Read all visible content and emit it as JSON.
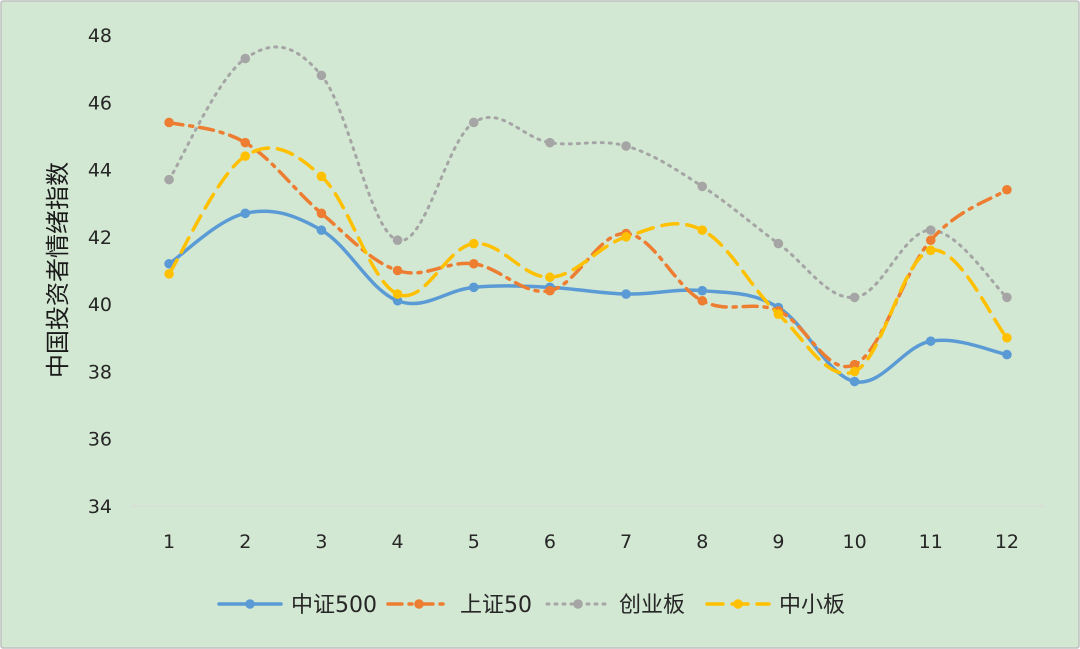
{
  "chart_data": {
    "type": "line",
    "title": "",
    "xlabel": "",
    "ylabel": "中国投资者情绪指数",
    "categories": [
      "1",
      "2",
      "3",
      "4",
      "5",
      "6",
      "7",
      "8",
      "9",
      "10",
      "11",
      "12"
    ],
    "ylim": [
      34,
      48
    ],
    "yticks": [
      "34",
      "36",
      "38",
      "40",
      "42",
      "44",
      "46",
      "48"
    ],
    "grid": false,
    "smooth": true,
    "legend_position": "bottom",
    "background_color": "#d3e8d3",
    "series": [
      {
        "name": "中证500",
        "color": "#5b9bd5",
        "style": "solid",
        "values": [
          41.2,
          42.7,
          42.2,
          40.1,
          40.5,
          40.5,
          40.3,
          40.4,
          39.9,
          37.7,
          38.9,
          38.5
        ]
      },
      {
        "name": "上证50",
        "color": "#ed7d31",
        "style": "dashdot",
        "values": [
          45.4,
          44.8,
          42.7,
          41.0,
          41.2,
          40.4,
          42.1,
          40.1,
          39.8,
          38.2,
          41.9,
          43.4
        ]
      },
      {
        "name": "创业板",
        "color": "#a5a5a5",
        "style": "dotted",
        "values": [
          43.7,
          47.3,
          46.8,
          41.9,
          45.4,
          44.8,
          44.7,
          43.5,
          41.8,
          40.2,
          42.2,
          40.2
        ]
      },
      {
        "name": "中小板",
        "color": "#ffc000",
        "style": "dashed",
        "values": [
          40.9,
          44.4,
          43.8,
          40.3,
          41.8,
          40.8,
          42.0,
          42.2,
          39.7,
          38.0,
          41.6,
          39.0
        ]
      }
    ]
  }
}
